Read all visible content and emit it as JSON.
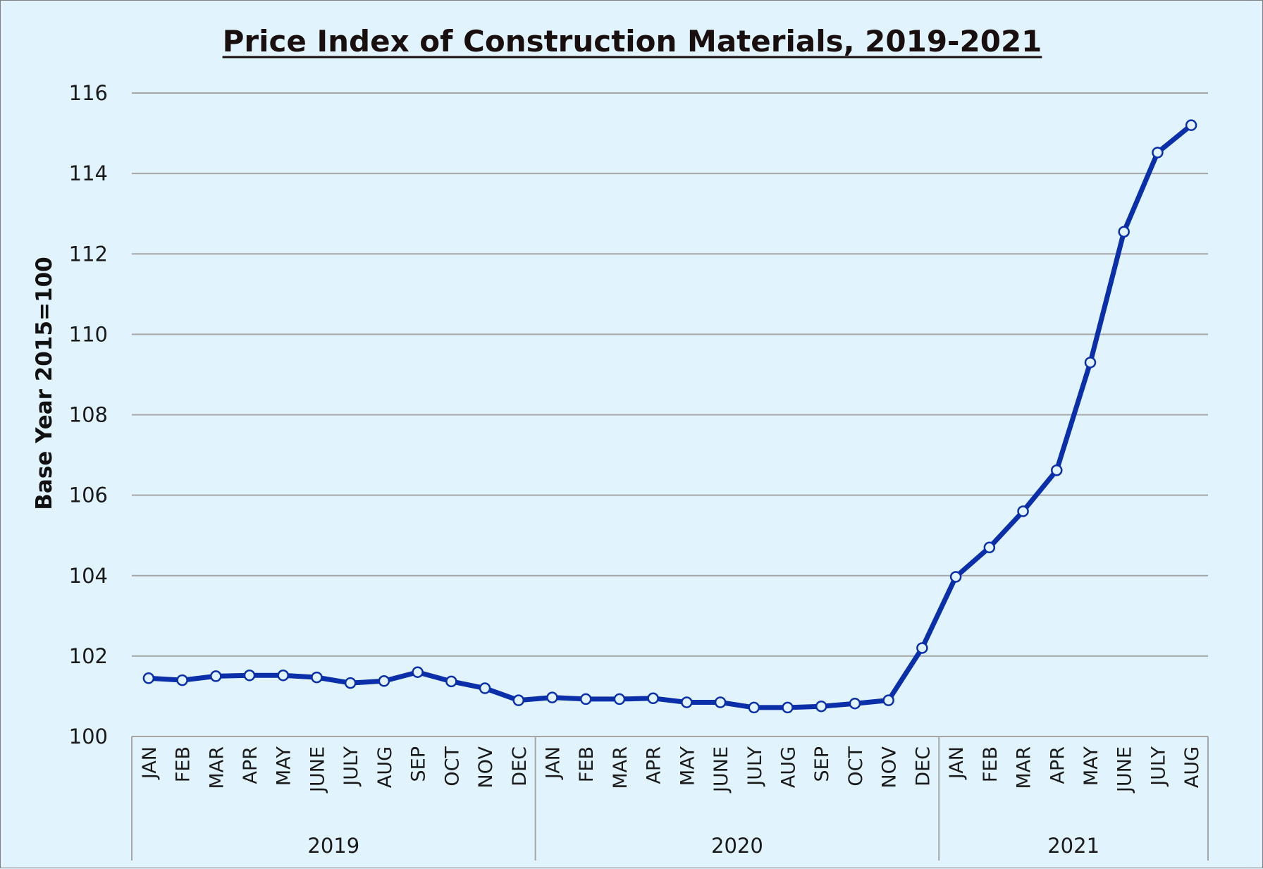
{
  "chart_data": {
    "type": "line",
    "title": "Price Index of Construction Materials, 2019-2021",
    "ylabel": "Base Year 2015=100",
    "ylim": [
      100,
      116
    ],
    "yticks": [
      100,
      102,
      104,
      106,
      108,
      110,
      112,
      114,
      116
    ],
    "grid": true,
    "legend": "none",
    "groups": [
      {
        "label": "2019",
        "months": [
          "JAN",
          "FEB",
          "MAR",
          "APR",
          "MAY",
          "JUNE",
          "JULY",
          "AUG",
          "SEP",
          "OCT",
          "NOV",
          "DEC"
        ]
      },
      {
        "label": "2020",
        "months": [
          "JAN",
          "FEB",
          "MAR",
          "APR",
          "MAY",
          "JUNE",
          "JULY",
          "AUG",
          "SEP",
          "OCT",
          "NOV",
          "DEC"
        ]
      },
      {
        "label": "2021",
        "months": [
          "JAN",
          "FEB",
          "MAR",
          "APR",
          "MAY",
          "JUNE",
          "JULY",
          "AUG"
        ]
      }
    ],
    "series": [
      {
        "color": "#0a2fa8",
        "values": [
          101.45,
          101.4,
          101.5,
          101.52,
          101.52,
          101.47,
          101.33,
          101.38,
          101.6,
          101.37,
          101.2,
          100.9,
          100.97,
          100.93,
          100.93,
          100.95,
          100.85,
          100.85,
          100.72,
          100.72,
          100.75,
          100.82,
          100.9,
          102.2,
          103.97,
          104.7,
          105.6,
          106.62,
          109.3,
          112.55,
          114.52,
          115.2
        ]
      }
    ]
  }
}
